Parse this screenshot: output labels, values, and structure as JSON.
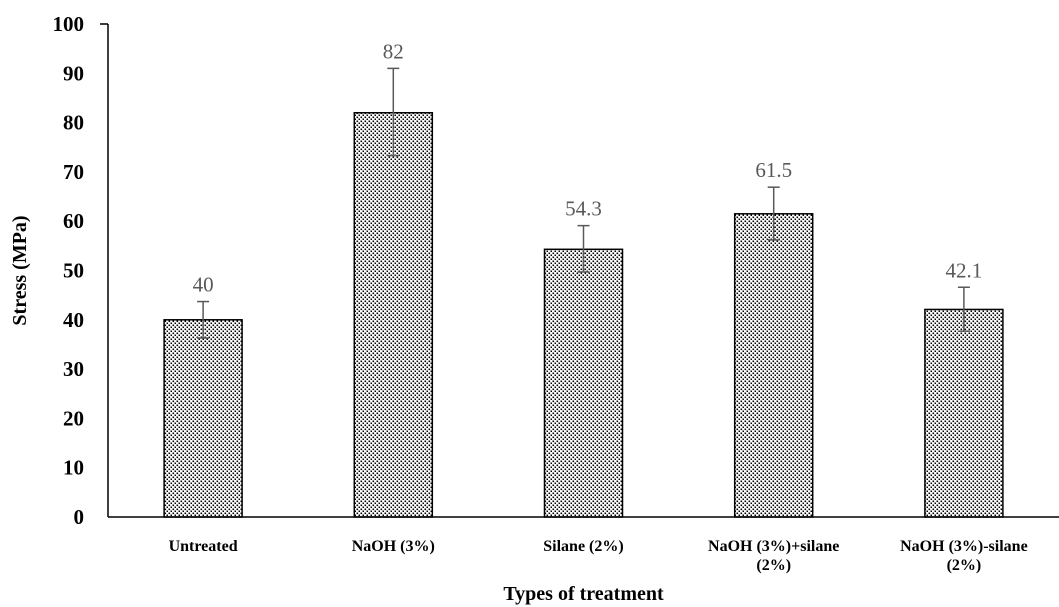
{
  "chart_data": {
    "type": "bar",
    "title": "",
    "xlabel": "Types of treatment",
    "ylabel": "Stress (MPa)",
    "ylim": [
      0,
      100
    ],
    "ytick_step": 10,
    "grid": false,
    "categories": [
      [
        "Untreated"
      ],
      [
        "NaOH (3%)"
      ],
      [
        "Silane (2%)"
      ],
      [
        "NaOH (3%)+silane",
        "(2%)"
      ],
      [
        "NaOH (3%)-silane",
        "(2%)"
      ]
    ],
    "values": [
      40,
      82,
      54.3,
      61.5,
      42.1
    ],
    "value_labels": [
      "40",
      "82",
      "54.3",
      "61.5",
      "42.1"
    ],
    "error_bars": [
      {
        "low": 36.3,
        "high": 43.7
      },
      {
        "low": 73.3,
        "high": 91.0
      },
      {
        "low": 49.7,
        "high": 59.1
      },
      {
        "low": 56.2,
        "high": 66.9
      },
      {
        "low": 37.7,
        "high": 46.6
      }
    ],
    "bar_fill": "dotted pattern",
    "bar_stroke": "#000000",
    "errorbar_color": "#595959",
    "label_color": "#595959"
  }
}
